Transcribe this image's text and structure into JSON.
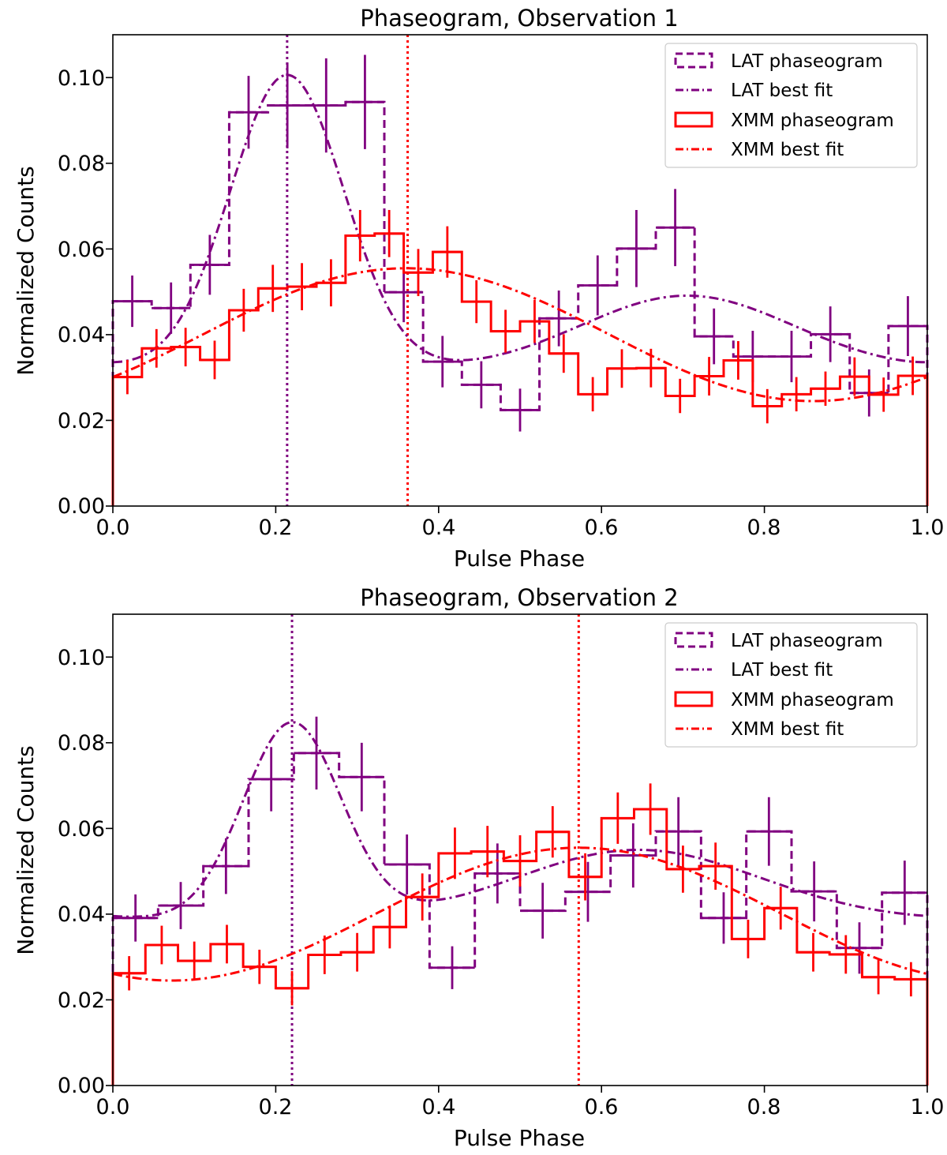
{
  "colors": {
    "lat": "#800080",
    "xmm": "#ff0000",
    "axis": "#000000"
  },
  "chart_data": [
    {
      "type": "step",
      "title": "Phaseogram, Observation 1",
      "xlabel": "Pulse Phase",
      "ylabel": "Normalized Counts",
      "xlim": [
        0,
        1
      ],
      "ylim": [
        0,
        0.11
      ],
      "xticks": [
        0.0,
        0.2,
        0.4,
        0.6,
        0.8,
        1.0
      ],
      "xtick_labels": [
        "0.0",
        "0.2",
        "0.4",
        "0.6",
        "0.8",
        "1.0"
      ],
      "yticks": [
        0.0,
        0.02,
        0.04,
        0.06,
        0.08,
        0.1
      ],
      "ytick_labels": [
        "0.00",
        "0.02",
        "0.04",
        "0.06",
        "0.08",
        "0.10"
      ],
      "bin_edges": [
        0,
        0.0357,
        0.0714,
        0.1071,
        0.1429,
        0.1786,
        0.2143,
        0.25,
        0.2857,
        0.3214,
        0.3571,
        0.3929,
        0.4286,
        0.4643,
        0.5,
        0.5357,
        0.5714,
        0.6071,
        0.6429,
        0.6786,
        0.7143,
        0.75,
        0.7857,
        0.8214,
        0.8571,
        0.8929,
        0.9286,
        0.9643,
        1.0
      ],
      "legend": {
        "location": "upper right",
        "entries": [
          "LAT phaseogram",
          "LAT best fit",
          "XMM phaseogram",
          "XMM best fit"
        ]
      },
      "series": [
        {
          "name": "LAT phaseogram",
          "style": "dashed-step",
          "color": "#800080",
          "values": [
            0.0478,
            0.0462,
            0.0563,
            0.0919,
            0.0935,
            0.0935,
            0.0943,
            0.0499,
            0.0337,
            0.0283,
            0.0224,
            0.0438,
            0.0515,
            0.0601,
            0.065,
            0.0396,
            0.0349,
            0.0349,
            0.0401,
            0.0264,
            0.042
          ],
          "errors": [
            0.006,
            0.006,
            0.007,
            0.0085,
            0.01,
            0.011,
            0.011,
            0.007,
            0.006,
            0.0055,
            0.005,
            0.0065,
            0.007,
            0.009,
            0.009,
            0.0065,
            0.006,
            0.006,
            0.0065,
            0.0055,
            0.007
          ],
          "bin_count": 21
        },
        {
          "name": "LAT best fit",
          "style": "dash-dot",
          "color": "#800080",
          "params": {
            "baseline": 0.0316,
            "peaks": [
              {
                "amp": 0.069,
                "center": 0.214,
                "sigma": 0.07
              },
              {
                "amp": 0.0175,
                "center": 0.705,
                "sigma": 0.13
              }
            ]
          }
        },
        {
          "name": "XMM phaseogram",
          "style": "solid-step",
          "color": "#ff0000",
          "values": [
            0.0301,
            0.0368,
            0.0371,
            0.0341,
            0.0457,
            0.0508,
            0.0512,
            0.0521,
            0.0631,
            0.0636,
            0.0545,
            0.0593,
            0.0477,
            0.0408,
            0.0431,
            0.0356,
            0.0261,
            0.0321,
            0.0322,
            0.0257,
            0.0303,
            0.034,
            0.0233,
            0.0261,
            0.0274,
            0.0302,
            0.026,
            0.0304
          ],
          "errors": [
            0.004,
            0.0045,
            0.0045,
            0.0045,
            0.005,
            0.0055,
            0.0055,
            0.0055,
            0.006,
            0.0055,
            0.0055,
            0.006,
            0.005,
            0.005,
            0.005,
            0.0045,
            0.004,
            0.0045,
            0.0045,
            0.004,
            0.0045,
            0.0045,
            0.004,
            0.004,
            0.004,
            0.0045,
            0.004,
            0.0045
          ],
          "bin_count": 28
        },
        {
          "name": "XMM best fit",
          "style": "dash-dot",
          "color": "#ff0000",
          "params": {
            "offset": 0.04,
            "amp": 0.0155,
            "phase_peak": 0.36
          }
        }
      ],
      "vlines": [
        {
          "x": 0.214,
          "color": "#800080",
          "style": "dotted"
        },
        {
          "x": 0.362,
          "color": "#ff0000",
          "style": "dotted"
        }
      ]
    },
    {
      "type": "step",
      "title": "Phaseogram, Observation 2",
      "xlabel": "Pulse Phase",
      "ylabel": "Normalized Counts",
      "xlim": [
        0,
        1
      ],
      "ylim": [
        0,
        0.11
      ],
      "xticks": [
        0.0,
        0.2,
        0.4,
        0.6,
        0.8,
        1.0
      ],
      "xtick_labels": [
        "0.0",
        "0.2",
        "0.4",
        "0.6",
        "0.8",
        "1.0"
      ],
      "yticks": [
        0.0,
        0.02,
        0.04,
        0.06,
        0.08,
        0.1
      ],
      "ytick_labels": [
        "0.00",
        "0.02",
        "0.04",
        "0.06",
        "0.08",
        "0.10"
      ],
      "legend": {
        "location": "upper right",
        "entries": [
          "LAT phaseogram",
          "LAT best fit",
          "XMM phaseogram",
          "XMM best fit"
        ]
      },
      "series": [
        {
          "name": "LAT phaseogram",
          "style": "dashed-step",
          "color": "#800080",
          "values": [
            0.0391,
            0.042,
            0.0512,
            0.0715,
            0.0776,
            0.072,
            0.0516,
            0.0275,
            0.0495,
            0.0408,
            0.0452,
            0.0537,
            0.0593,
            0.0391,
            0.0593,
            0.0453,
            0.0321,
            0.045
          ],
          "errors": [
            0.0055,
            0.0055,
            0.0065,
            0.0075,
            0.0085,
            0.008,
            0.007,
            0.005,
            0.007,
            0.0065,
            0.007,
            0.0075,
            0.008,
            0.006,
            0.008,
            0.007,
            0.006,
            0.0075
          ],
          "bin_count": 18
        },
        {
          "name": "LAT best fit",
          "style": "dash-dot",
          "color": "#800080",
          "params": {
            "baseline": 0.0385,
            "peaks": [
              {
                "amp": 0.046,
                "center": 0.22,
                "sigma": 0.06
              },
              {
                "amp": 0.0165,
                "center": 0.645,
                "sigma": 0.15
              }
            ]
          }
        },
        {
          "name": "XMM phaseogram",
          "style": "solid-step",
          "color": "#ff0000",
          "values": [
            0.0262,
            0.0328,
            0.0291,
            0.033,
            0.0277,
            0.0227,
            0.0305,
            0.0311,
            0.037,
            0.044,
            0.0542,
            0.0546,
            0.0524,
            0.0592,
            0.0487,
            0.0624,
            0.0645,
            0.0505,
            0.0512,
            0.0342,
            0.0414,
            0.0311,
            0.0306,
            0.0253,
            0.0248
          ],
          "errors": [
            0.004,
            0.0045,
            0.0045,
            0.0045,
            0.004,
            0.004,
            0.0045,
            0.0045,
            0.005,
            0.0055,
            0.006,
            0.006,
            0.006,
            0.006,
            0.0055,
            0.006,
            0.006,
            0.0055,
            0.0055,
            0.0045,
            0.005,
            0.0045,
            0.0045,
            0.004,
            0.004
          ],
          "bin_count": 25
        },
        {
          "name": "XMM best fit",
          "style": "dash-dot",
          "color": "#ff0000",
          "params": {
            "offset": 0.04,
            "amp": 0.0155,
            "phase_peak": 0.572
          }
        }
      ],
      "vlines": [
        {
          "x": 0.22,
          "color": "#800080",
          "style": "dotted"
        },
        {
          "x": 0.572,
          "color": "#ff0000",
          "style": "dotted"
        }
      ]
    }
  ]
}
